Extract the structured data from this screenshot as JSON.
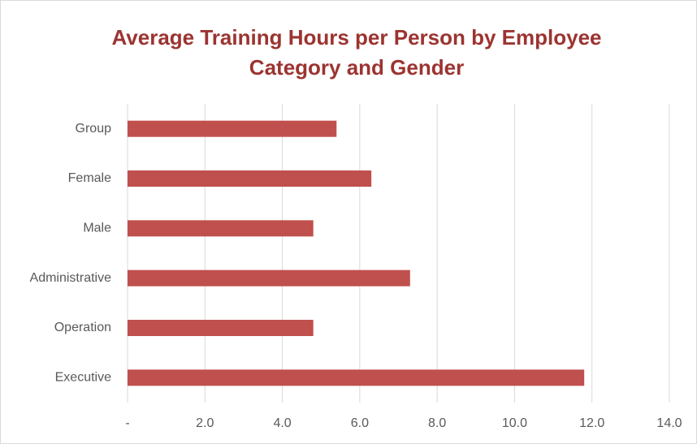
{
  "chart_data": {
    "type": "barh",
    "title": "Average Training Hours per Person by Employee Category and Gender",
    "categories": [
      "Group",
      "Female",
      "Male",
      "Administrative",
      "Operation",
      "Executive"
    ],
    "values": [
      5.4,
      6.3,
      4.8,
      7.3,
      4.8,
      11.8
    ],
    "color": "#c0504d",
    "xlim": [
      0,
      14
    ],
    "xticks": [
      {
        "value": 0,
        "label": "-"
      },
      {
        "value": 2,
        "label": "2.0"
      },
      {
        "value": 4,
        "label": "4.0"
      },
      {
        "value": 6,
        "label": "6.0"
      },
      {
        "value": 8,
        "label": "8.0"
      },
      {
        "value": 10,
        "label": "10.0"
      },
      {
        "value": 12,
        "label": "12.0"
      },
      {
        "value": 14,
        "label": "14.0"
      }
    ],
    "grid": true
  }
}
